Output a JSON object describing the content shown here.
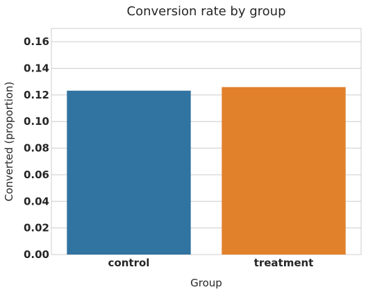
{
  "chart_data": {
    "type": "bar",
    "title": "Conversion rate by group",
    "xlabel": "Group",
    "ylabel": "Converted (proportion)",
    "categories": [
      "control",
      "treatment"
    ],
    "values": [
      0.1232,
      0.1259
    ],
    "colors": [
      "#3274a1",
      "#e1812c"
    ],
    "ylim": [
      0,
      0.17
    ],
    "yticks": [
      "0.00",
      "0.02",
      "0.04",
      "0.06",
      "0.08",
      "0.10",
      "0.12",
      "0.14",
      "0.16"
    ],
    "grid": "horizontal",
    "legend": "none"
  }
}
